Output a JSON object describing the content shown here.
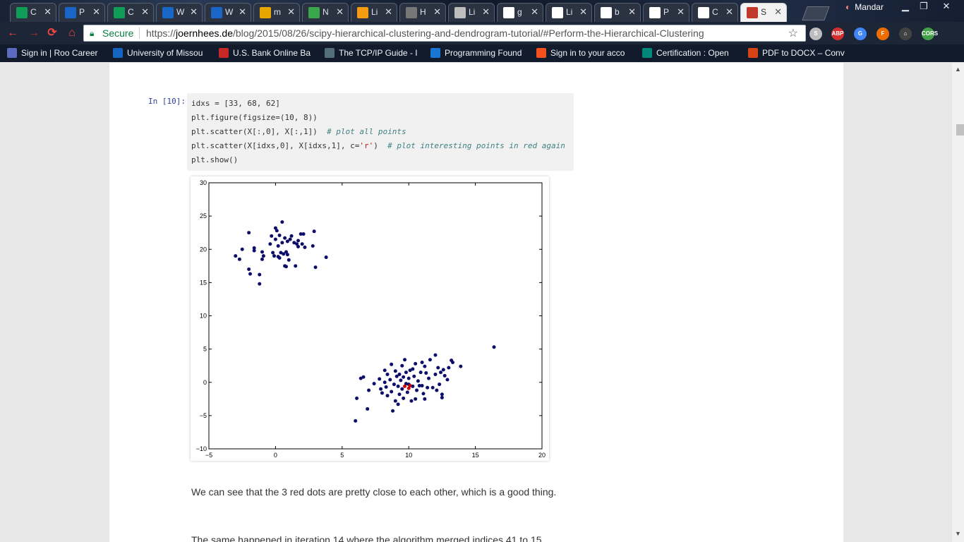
{
  "tabs": [
    {
      "label": "C",
      "icon": "sheets-icon",
      "color": "#0f9d58"
    },
    {
      "label": "P",
      "icon": "box-icon",
      "color": "#1a66c6"
    },
    {
      "label": "C",
      "icon": "sheets-icon",
      "color": "#0f9d58"
    },
    {
      "label": "W",
      "icon": "box-icon",
      "color": "#1a66c6"
    },
    {
      "label": "W",
      "icon": "box-icon",
      "color": "#1a66c6"
    },
    {
      "label": "m",
      "icon": "document-icon",
      "color": "#e6a700"
    },
    {
      "label": "N",
      "icon": "gitbook-icon",
      "color": "#3aa64a"
    },
    {
      "label": "Li",
      "icon": "bookmark-icon",
      "color": "#f39c12"
    },
    {
      "label": "H",
      "icon": "photo-icon",
      "color": "#777777"
    },
    {
      "label": "Li",
      "icon": "page-icon",
      "color": "#bdbdbd"
    },
    {
      "label": "g",
      "icon": "google-icon",
      "color": "#ffffff"
    },
    {
      "label": "Li",
      "icon": "github-icon",
      "color": "#ffffff"
    },
    {
      "label": "b",
      "icon": "github-icon",
      "color": "#ffffff"
    },
    {
      "label": "P",
      "icon": "github-icon",
      "color": "#ffffff"
    },
    {
      "label": "C",
      "icon": "github-icon",
      "color": "#ffffff"
    },
    {
      "label": "S",
      "icon": "avatar-icon",
      "color": "#c0392b",
      "active": true
    }
  ],
  "profile_name": "Mandar",
  "omnibox": {
    "secure_label": "Secure",
    "url_prefix": "https://",
    "url_host": "joernhees.de",
    "url_path": "/blog/2015/08/26/scipy-hierarchical-clustering-and-dendrogram-tutorial/#Perform-the-Hierarchical-Clustering"
  },
  "extensions": [
    {
      "icon": "skype-icon",
      "text": "S",
      "color": "#bdbdbd"
    },
    {
      "icon": "adblock-icon",
      "text": "ABP",
      "color": "#d32f2f"
    },
    {
      "icon": "translate-icon",
      "text": "G",
      "color": "#4285f4"
    },
    {
      "icon": "f-icon",
      "text": "F",
      "color": "#ef6c00"
    },
    {
      "icon": "home-icon",
      "text": "⌂",
      "color": "#424242"
    },
    {
      "icon": "cors-icon",
      "text": "CORS",
      "color": "#43a047"
    }
  ],
  "bookmarks": [
    {
      "label": "Sign in | Roo Career",
      "color": "#5c6bc0"
    },
    {
      "label": "University of Missou",
      "color": "#1565c0"
    },
    {
      "label": "U.S. Bank Online Ba",
      "color": "#c62828"
    },
    {
      "label": "The TCP/IP Guide - I",
      "color": "#546e7a"
    },
    {
      "label": "Programming Found",
      "color": "#1976d2"
    },
    {
      "label": "Sign in to your acco",
      "color": "#f4511e"
    },
    {
      "label": "Certification : Open",
      "color": "#00897b"
    },
    {
      "label": "PDF to DOCX – Conv",
      "color": "#d84315"
    }
  ],
  "cell": {
    "prompt": "In [10]:",
    "lines": [
      {
        "code": "idxs = [33, 68, 62]",
        "comment": ""
      },
      {
        "code": "plt.figure(figsize=(10, 8))",
        "comment": ""
      },
      {
        "code": "plt.scatter(X[:,0], X[:,1])  ",
        "comment": "# plot all points"
      },
      {
        "code": "plt.scatter(X[idxs,0], X[idxs,1], c=",
        "str": "'r'",
        "code2": ")  ",
        "comment": "# plot interesting points in red again"
      },
      {
        "code": "plt.show()",
        "comment": ""
      }
    ]
  },
  "chart_data": {
    "type": "scatter",
    "title": "",
    "xlabel": "",
    "ylabel": "",
    "xlim": [
      -5,
      20
    ],
    "ylim": [
      -10,
      30
    ],
    "xticks": [
      "−5",
      "0",
      "5",
      "10",
      "15",
      "20"
    ],
    "yticks": [
      "−10",
      "−5",
      "0",
      "5",
      "10",
      "15",
      "20",
      "25",
      "30"
    ],
    "series": [
      {
        "color": "#0d0d6b",
        "points": [
          [
            -3,
            19
          ],
          [
            -2.7,
            18.5
          ],
          [
            -2.5,
            20
          ],
          [
            -2,
            17
          ],
          [
            -1.9,
            16.3
          ],
          [
            -2,
            22.5
          ],
          [
            -1.6,
            20.2
          ],
          [
            -1.6,
            19.8
          ],
          [
            -1.2,
            16.2
          ],
          [
            -1.2,
            14.8
          ],
          [
            -1,
            19.6
          ],
          [
            -1,
            18.5
          ],
          [
            -0.9,
            19
          ],
          [
            -0.4,
            20.8
          ],
          [
            -0.3,
            22
          ],
          [
            -0.2,
            19.5
          ],
          [
            -0.1,
            19
          ],
          [
            0,
            21.5
          ],
          [
            0.1,
            22.8
          ],
          [
            0,
            23.2
          ],
          [
            0.2,
            18.9
          ],
          [
            0.3,
            18.7
          ],
          [
            0.2,
            20.5
          ],
          [
            0.3,
            22.1
          ],
          [
            0.4,
            19.5
          ],
          [
            0.5,
            24.1
          ],
          [
            0.5,
            21
          ],
          [
            0.6,
            19.3
          ],
          [
            0.7,
            17.5
          ],
          [
            0.7,
            21.7
          ],
          [
            0.8,
            19.6
          ],
          [
            0.8,
            17.4
          ],
          [
            0.9,
            19.2
          ],
          [
            0.9,
            21.2
          ],
          [
            1,
            18.4
          ],
          [
            1.1,
            21.5
          ],
          [
            1.2,
            22
          ],
          [
            1.4,
            21
          ],
          [
            1.5,
            17.5
          ],
          [
            1.6,
            20.8
          ],
          [
            1.7,
            21.3
          ],
          [
            1.7,
            20.4
          ],
          [
            1.9,
            22.3
          ],
          [
            2,
            20.8
          ],
          [
            2.1,
            22.3
          ],
          [
            2.2,
            20.3
          ],
          [
            2.8,
            20.5
          ],
          [
            2.9,
            22.7
          ],
          [
            3,
            17.3
          ],
          [
            3.8,
            18.8
          ],
          [
            6,
            -5.8
          ],
          [
            6.1,
            -2.4
          ],
          [
            6.4,
            0.6
          ],
          [
            6.6,
            0.8
          ],
          [
            6.9,
            -4
          ],
          [
            7,
            -1.2
          ],
          [
            7.4,
            -0.2
          ],
          [
            7.8,
            0.5
          ],
          [
            7.9,
            -1
          ],
          [
            8,
            -1.6
          ],
          [
            8.2,
            0
          ],
          [
            8.2,
            1.8
          ],
          [
            8.3,
            -0.7
          ],
          [
            8.4,
            -2
          ],
          [
            8.4,
            1.2
          ],
          [
            8.6,
            0.4
          ],
          [
            8.7,
            -1.4
          ],
          [
            8.8,
            -4.3
          ],
          [
            8.7,
            2.7
          ],
          [
            8.9,
            -0.3
          ],
          [
            9,
            -2.8
          ],
          [
            9,
            1.7
          ],
          [
            9.1,
            0.9
          ],
          [
            9.2,
            -0.6
          ],
          [
            9.2,
            -3.3
          ],
          [
            9.3,
            1.2
          ],
          [
            9.3,
            -1.8
          ],
          [
            9.4,
            0.3
          ],
          [
            9.5,
            -1
          ],
          [
            9.5,
            2.5
          ],
          [
            9.6,
            -2.4
          ],
          [
            9.6,
            0.8
          ],
          [
            9.7,
            3.4
          ],
          [
            9.8,
            -0.2
          ],
          [
            9.8,
            1.5
          ],
          [
            9.9,
            -1.5
          ],
          [
            10,
            0.6
          ],
          [
            10,
            -0.3
          ],
          [
            10.1,
            1.8
          ],
          [
            10.2,
            -2.8
          ],
          [
            10.3,
            2
          ],
          [
            10.3,
            -0.6
          ],
          [
            10.4,
            0.9
          ],
          [
            10.5,
            -2.5
          ],
          [
            10.5,
            2.8
          ],
          [
            10.6,
            -1.2
          ],
          [
            10.7,
            0.2
          ],
          [
            10.8,
            -0.5
          ],
          [
            10.9,
            1.5
          ],
          [
            11,
            -0.5
          ],
          [
            11,
            3
          ],
          [
            11.1,
            -1.7
          ],
          [
            11.2,
            2.4
          ],
          [
            11.2,
            -2.5
          ],
          [
            11.3,
            1.4
          ],
          [
            11.4,
            -0.8
          ],
          [
            11.5,
            0.6
          ],
          [
            11.6,
            3.4
          ],
          [
            11.8,
            -0.8
          ],
          [
            12,
            1.2
          ],
          [
            12,
            4.1
          ],
          [
            12.1,
            -1.2
          ],
          [
            12.2,
            2.2
          ],
          [
            12.3,
            -0.3
          ],
          [
            12.4,
            1.5
          ],
          [
            12.5,
            -1.8
          ],
          [
            12.5,
            -2.3
          ],
          [
            12.6,
            1.9
          ],
          [
            12.7,
            1
          ],
          [
            12.9,
            0.4
          ],
          [
            13,
            2.2
          ],
          [
            13.2,
            3.3
          ],
          [
            13.3,
            3
          ],
          [
            13.9,
            2.4
          ],
          [
            16.4,
            5.3
          ]
        ]
      },
      {
        "color": "#cc0000",
        "points": [
          [
            9.7,
            -0.6
          ],
          [
            10,
            -0.9
          ],
          [
            10.1,
            -0.5
          ]
        ]
      }
    ]
  },
  "paragraph1": "We can see that the 3 red dots are pretty close to each other, which is a good thing.",
  "paragraph2": "The same happened in iteration 14 where the algorithm merged indices 41 to 15"
}
